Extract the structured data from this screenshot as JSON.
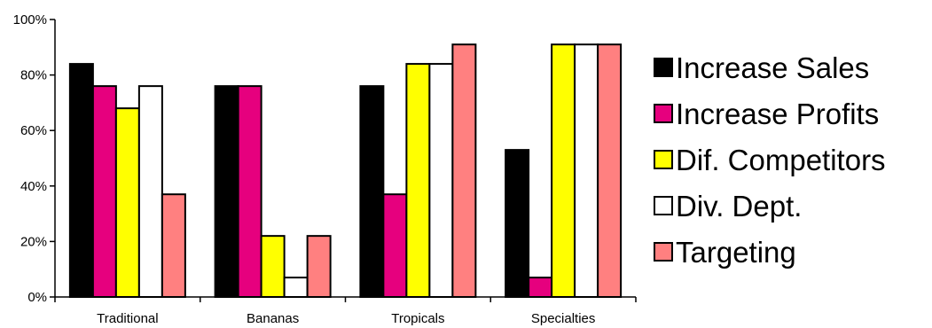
{
  "chart_data": {
    "type": "bar",
    "categories": [
      "Traditional",
      "Bananas",
      "Tropicals",
      "Specialties"
    ],
    "series": [
      {
        "name": "Increase Sales",
        "color": "#000000",
        "values": [
          84,
          76,
          76,
          53
        ]
      },
      {
        "name": "Increase Profits",
        "color": "#e6007e",
        "values": [
          76,
          76,
          37,
          7
        ]
      },
      {
        "name": "Dif. Competitors",
        "color": "#ffff00",
        "values": [
          68,
          22,
          84,
          91
        ]
      },
      {
        "name": "Div. Dept.",
        "color": "#ffffff",
        "values": [
          76,
          7,
          84,
          91
        ]
      },
      {
        "name": "Targeting",
        "color": "#ff8080",
        "values": [
          37,
          22,
          91,
          91
        ]
      }
    ],
    "ylim": [
      0,
      100
    ],
    "yticks": [
      0,
      20,
      40,
      60,
      80,
      100
    ],
    "ytick_labels": [
      "0%",
      "20%",
      "40%",
      "60%",
      "80%",
      "100%"
    ],
    "legend_position": "right",
    "grid": false,
    "title": "",
    "xlabel": "",
    "ylabel": ""
  }
}
